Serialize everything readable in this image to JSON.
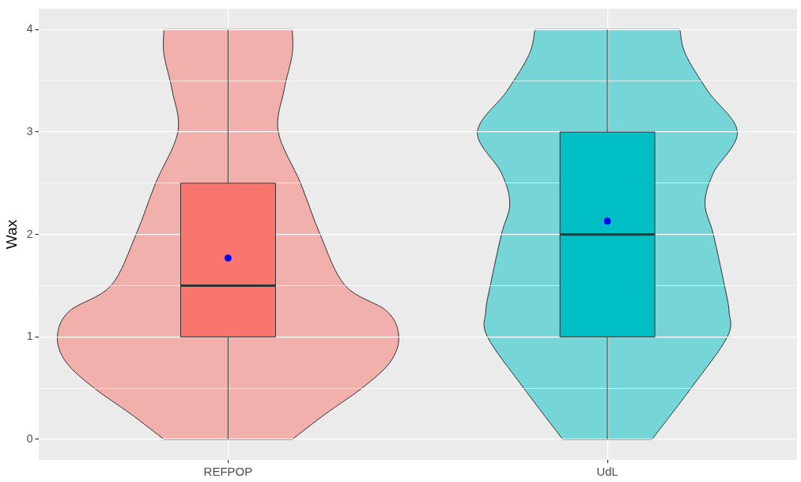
{
  "chart_data": {
    "type": "box",
    "ylabel": "Wax",
    "categories": [
      "REFPOP",
      "UdL"
    ],
    "colors": [
      "#f8766d",
      "#00bfc4"
    ],
    "boxes": [
      {
        "low": 0,
        "q1": 1,
        "median": 1.5,
        "q3": 2.5,
        "high": 4,
        "mean": 1.77
      },
      {
        "low": 0,
        "q1": 1,
        "median": 2,
        "q3": 3,
        "high": 4,
        "mean": 2.13
      }
    ],
    "ylim": [
      -0.2,
      4.2
    ],
    "yticks": [
      0,
      {
        "value": 0.5,
        "label": null
      },
      1,
      {
        "value": 1.5,
        "label": null
      },
      2,
      {
        "value": 2.5,
        "label": null
      },
      3,
      {
        "value": 3.5,
        "label": null
      },
      4
    ],
    "grid": true
  }
}
